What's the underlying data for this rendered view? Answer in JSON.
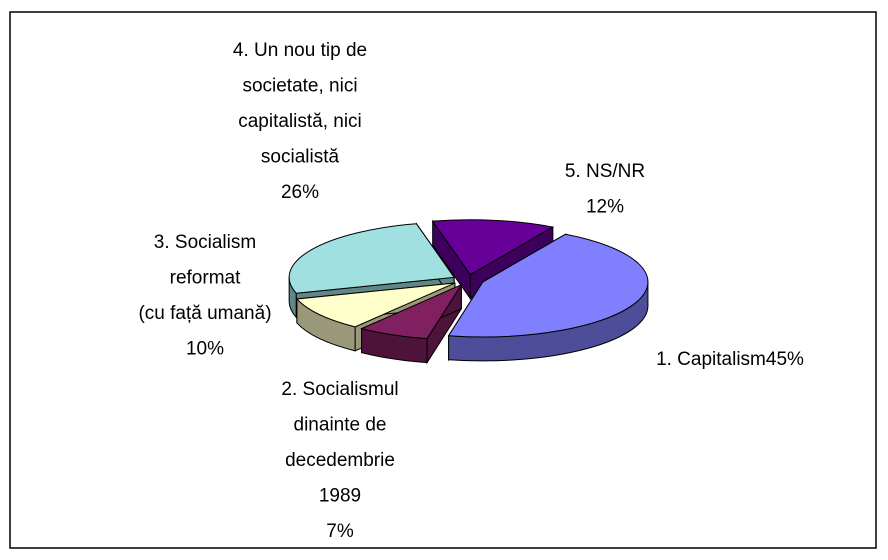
{
  "chart_data": {
    "type": "pie3d",
    "categories": [
      [
        "1. Capitalism"
      ],
      [
        "2. Socialismul",
        "dinainte de",
        "decedembrie",
        "1989"
      ],
      [
        "3. Socialism",
        "reformat",
        "(cu față umană)"
      ],
      [
        "4. Un nou tip de",
        "societate, nici",
        "capitalistă, nici",
        "socialistă"
      ],
      [
        "5. NS/NR"
      ]
    ],
    "values": [
      45,
      7,
      10,
      26,
      12
    ],
    "value_labels": [
      "45%",
      "7%",
      "10%",
      "26%",
      "12%"
    ],
    "colors": [
      "#8080ff",
      "#802060",
      "#ffffcc",
      "#a0e0e0",
      "#660099"
    ]
  }
}
